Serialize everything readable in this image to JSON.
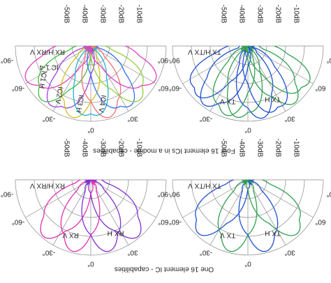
{
  "captions": [
    "Four 16 element ICs in a module - capabilities",
    "One 16 element IC - capabilities"
  ],
  "panels": [
    {
      "title": "RX H/RX V",
      "subtitle": "IC 1-4",
      "notes": [
        "IC1 H",
        "IC2 V",
        "IC3 H",
        "IC4 V"
      ]
    },
    {
      "title": "TX H/TX V",
      "notes": [
        "TX V",
        "TX H"
      ]
    },
    {
      "title": "RX H/RX V",
      "notes": [
        "RX V",
        "RX H"
      ]
    },
    {
      "title": "TX H/TX V",
      "notes": [
        "TX V",
        "TX H"
      ]
    }
  ],
  "db_labels": [
    "-50dB",
    "-40dB",
    "-30dB",
    "-20dB",
    "-10dB"
  ],
  "angle_labels": [
    "-90°",
    "-60°",
    "-30°",
    "0°",
    "30°",
    "60°",
    "90°"
  ]
}
